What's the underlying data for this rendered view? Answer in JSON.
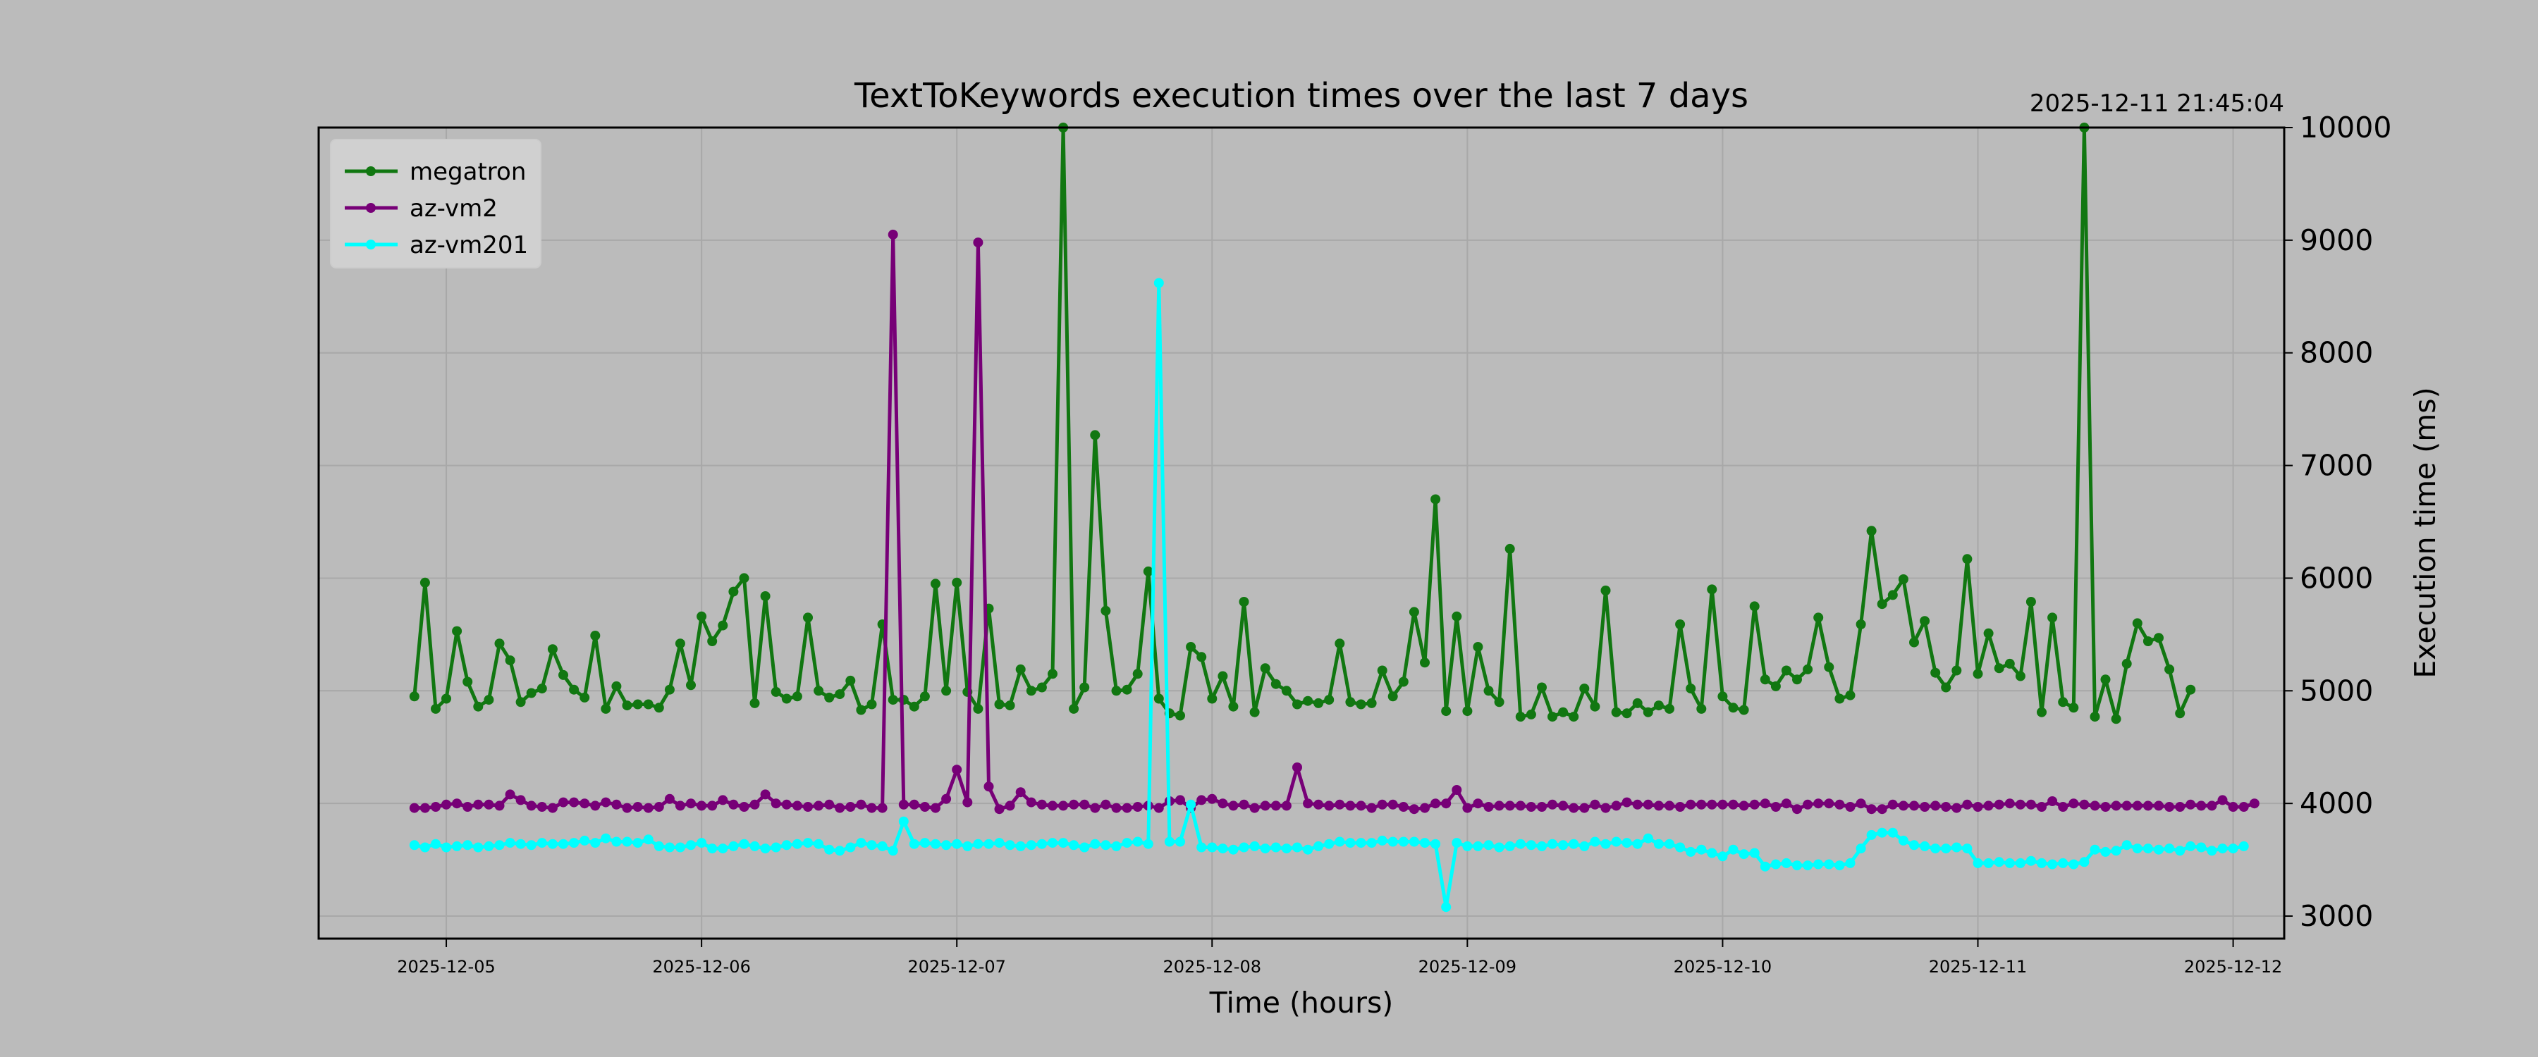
{
  "chart_data": {
    "type": "line",
    "title": "TextToKeywords execution times over the last 7 days",
    "timestamp": "2025-12-11 21:45:04",
    "xlabel": "Time (hours)",
    "ylabel": "Execution time (ms)",
    "x_ticks": [
      "2025-12-05",
      "2025-12-06",
      "2025-12-07",
      "2025-12-08",
      "2025-12-09",
      "2025-12-10",
      "2025-12-11",
      "2025-12-12"
    ],
    "y_ticks": [
      3000,
      4000,
      5000,
      6000,
      7000,
      8000,
      9000,
      10000
    ],
    "xlim": [
      "2025-12-04 12:00",
      "2025-12-12 04:48"
    ],
    "ylim": [
      2800,
      10000
    ],
    "y_axis_side": "right",
    "grid": true,
    "legend_position": "upper-left",
    "sample_interval_hours": 1,
    "colors": {
      "background": "#bbbbbb",
      "grid": "#a8a8a8",
      "legend_bg": "#d0d0d0"
    },
    "series": [
      {
        "name": "megatron",
        "color": "#117711",
        "start": "2025-12-04 21:00",
        "values": [
          4950,
          5960,
          4840,
          4930,
          5530,
          5080,
          4860,
          4920,
          5420,
          5270,
          4900,
          4980,
          5020,
          5370,
          5140,
          5010,
          4940,
          5490,
          4840,
          5040,
          4870,
          4880,
          4880,
          4850,
          5010,
          5420,
          5050,
          5660,
          5440,
          5580,
          5880,
          6000,
          4890,
          5840,
          4990,
          4930,
          4950,
          5650,
          5000,
          4940,
          4970,
          5090,
          4830,
          4880,
          5590,
          4920,
          4920,
          4860,
          4950,
          5950,
          5000,
          5960,
          4990,
          4840,
          5730,
          4880,
          4870,
          5190,
          5000,
          5030,
          5150,
          10000,
          4840,
          5030,
          7270,
          5710,
          5000,
          5010,
          5150,
          6060,
          4930,
          4800,
          4780,
          5390,
          5300,
          4930,
          5130,
          4860,
          5790,
          4810,
          5200,
          5060,
          5000,
          4880,
          4910,
          4890,
          4920,
          5420,
          4900,
          4880,
          4890,
          5180,
          4950,
          5080,
          5700,
          5250,
          6700,
          4820,
          5660,
          4820,
          5390,
          5000,
          4900,
          6260,
          4770,
          4790,
          5030,
          4770,
          4810,
          4770,
          5020,
          4860,
          5890,
          4810,
          4800,
          4890,
          4810,
          4870,
          4840,
          5590,
          5020,
          4840,
          5900,
          4950,
          4850,
          4830,
          5750,
          5100,
          5040,
          5180,
          5100,
          5190,
          5650,
          5210,
          4930,
          4960,
          5590,
          6420,
          5770,
          5850,
          5990,
          5430,
          5620,
          5160,
          5030,
          5180,
          6170,
          5150,
          5510,
          5200,
          5240,
          5130,
          5790,
          4810,
          5650,
          4900,
          4850,
          10000,
          4770,
          5100,
          4750,
          5240,
          5600,
          5440,
          5470,
          5190,
          4800,
          5010
        ]
      },
      {
        "name": "az-vm2",
        "color": "#770077",
        "start": "2025-12-04 21:00",
        "values": [
          3960,
          3960,
          3970,
          3990,
          4000,
          3970,
          3990,
          3990,
          3980,
          4080,
          4030,
          3980,
          3970,
          3960,
          4010,
          4010,
          4000,
          3980,
          4010,
          3990,
          3960,
          3970,
          3960,
          3970,
          4040,
          3980,
          4000,
          3980,
          3980,
          4030,
          3990,
          3970,
          3990,
          4080,
          4000,
          3990,
          3980,
          3970,
          3980,
          3990,
          3960,
          3970,
          3990,
          3960,
          3960,
          9050,
          3990,
          3990,
          3970,
          3960,
          4040,
          4300,
          4010,
          8980,
          4150,
          3950,
          3980,
          4100,
          4010,
          3990,
          3980,
          3980,
          3990,
          3990,
          3960,
          3990,
          3960,
          3960,
          3970,
          3980,
          3960,
          4020,
          4030,
          3960,
          4030,
          4040,
          4000,
          3980,
          3990,
          3960,
          3980,
          3980,
          3980,
          4320,
          4000,
          3990,
          3980,
          3990,
          3980,
          3980,
          3960,
          3990,
          3990,
          3970,
          3950,
          3960,
          4000,
          4000,
          4120,
          3960,
          4000,
          3970,
          3980,
          3980,
          3980,
          3970,
          3970,
          3990,
          3980,
          3960,
          3960,
          3990,
          3960,
          3980,
          4010,
          3990,
          3990,
          3980,
          3980,
          3970,
          3990,
          3990,
          3990,
          3990,
          3990,
          3980,
          3990,
          4000,
          3970,
          4000,
          3950,
          3990,
          4000,
          4000,
          3990,
          3970,
          4000,
          3950,
          3950,
          3990,
          3980,
          3980,
          3970,
          3980,
          3970,
          3960,
          3990,
          3970,
          3980,
          3990,
          4000,
          3990,
          3990,
          3970,
          4020,
          3970,
          4000,
          3990,
          3980,
          3970,
          3980,
          3980,
          3980,
          3980,
          3980,
          3970,
          3970,
          3990,
          3980,
          3980,
          4030,
          3970,
          3970,
          4000
        ]
      },
      {
        "name": "az-vm201",
        "color": "#00ffff",
        "start": "2025-12-04 21:00",
        "values": [
          3630,
          3610,
          3640,
          3610,
          3620,
          3630,
          3610,
          3620,
          3630,
          3650,
          3640,
          3630,
          3650,
          3640,
          3640,
          3650,
          3670,
          3650,
          3690,
          3660,
          3660,
          3650,
          3680,
          3620,
          3610,
          3610,
          3630,
          3650,
          3600,
          3600,
          3620,
          3640,
          3620,
          3600,
          3610,
          3630,
          3640,
          3650,
          3640,
          3590,
          3580,
          3610,
          3650,
          3630,
          3620,
          3580,
          3840,
          3640,
          3650,
          3640,
          3630,
          3640,
          3620,
          3640,
          3640,
          3650,
          3630,
          3620,
          3630,
          3640,
          3650,
          3650,
          3630,
          3610,
          3640,
          3630,
          3620,
          3650,
          3660,
          3640,
          8620,
          3660,
          3660,
          3990,
          3610,
          3610,
          3600,
          3590,
          3610,
          3620,
          3600,
          3610,
          3600,
          3610,
          3590,
          3620,
          3640,
          3660,
          3650,
          3650,
          3650,
          3670,
          3660,
          3660,
          3660,
          3650,
          3640,
          3080,
          3650,
          3620,
          3620,
          3630,
          3610,
          3620,
          3640,
          3630,
          3620,
          3640,
          3630,
          3640,
          3620,
          3660,
          3640,
          3660,
          3650,
          3640,
          3690,
          3640,
          3640,
          3610,
          3570,
          3590,
          3560,
          3530,
          3590,
          3550,
          3560,
          3440,
          3460,
          3470,
          3450,
          3450,
          3460,
          3460,
          3450,
          3470,
          3600,
          3720,
          3740,
          3740,
          3670,
          3630,
          3620,
          3600,
          3600,
          3610,
          3600,
          3470,
          3470,
          3480,
          3470,
          3470,
          3490,
          3470,
          3460,
          3470,
          3460,
          3480,
          3590,
          3570,
          3580,
          3630,
          3600,
          3600,
          3590,
          3600,
          3580,
          3620,
          3610,
          3580,
          3600,
          3600,
          3620
        ]
      }
    ]
  }
}
